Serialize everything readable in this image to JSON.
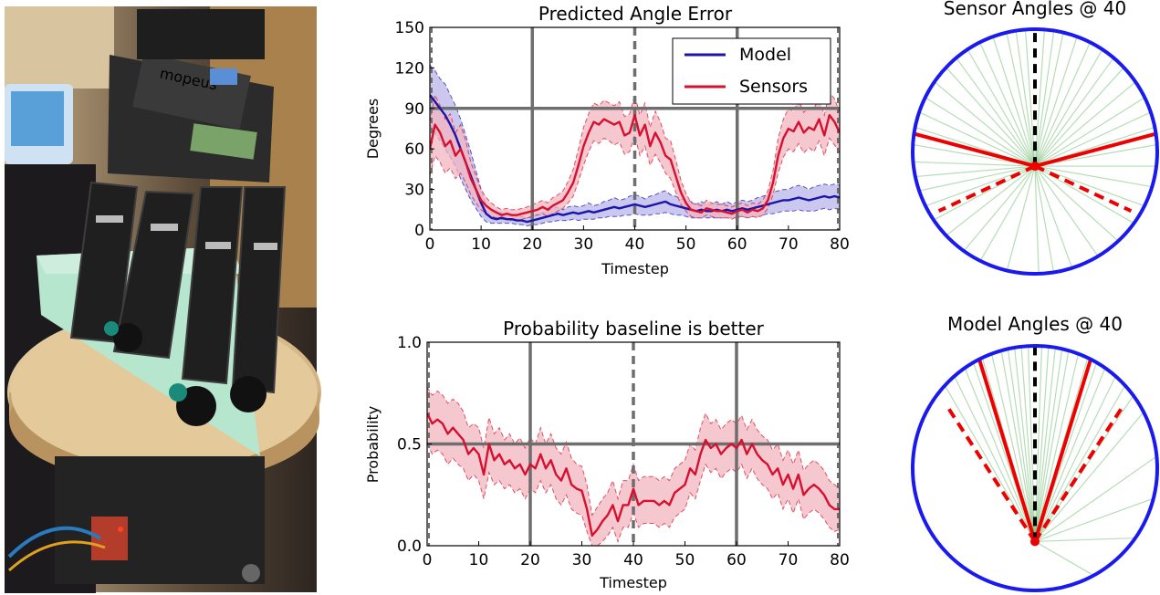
{
  "colors": {
    "model": "#1a14a8",
    "sensors": "#d6102e",
    "sensors_band": "#f2b5bf",
    "model_band": "#b9b6ea",
    "ref_line": "#6e6e6e",
    "polar_ring": "#1a1aef",
    "polar_rays": "#5db25d",
    "polar_red": "#ee0000"
  },
  "photo": {
    "description_icon": "robot-hand-photo",
    "label_text": "mopeus"
  },
  "chart_data": [
    {
      "type": "line",
      "id": "angle-error",
      "title": "Predicted Angle Error",
      "xlabel": "Timestep",
      "ylabel": "Degrees",
      "xlim": [
        0,
        80
      ],
      "ylim": [
        0,
        150
      ],
      "xticks": [
        0,
        10,
        20,
        30,
        40,
        50,
        60,
        70,
        80
      ],
      "yticks": [
        0,
        30,
        60,
        90,
        120,
        150
      ],
      "ref_hline": 90,
      "ref_vlines_solid": [
        20,
        60
      ],
      "ref_vline_dashed": 40,
      "legend": {
        "position": "top-right",
        "entries": [
          "Model",
          "Sensors"
        ]
      },
      "x": [
        0,
        1,
        2,
        3,
        4,
        5,
        6,
        7,
        8,
        9,
        10,
        11,
        12,
        13,
        14,
        15,
        16,
        17,
        18,
        19,
        20,
        21,
        22,
        23,
        24,
        25,
        26,
        27,
        28,
        29,
        30,
        31,
        32,
        33,
        34,
        35,
        36,
        37,
        38,
        39,
        40,
        41,
        42,
        43,
        44,
        45,
        46,
        47,
        48,
        49,
        50,
        51,
        52,
        53,
        54,
        55,
        56,
        57,
        58,
        59,
        60,
        61,
        62,
        63,
        64,
        65,
        66,
        67,
        68,
        69,
        70,
        71,
        72,
        73,
        74,
        75,
        76,
        77,
        78,
        79,
        80
      ],
      "series": [
        {
          "name": "Model",
          "values": [
            100,
            95,
            90,
            85,
            78,
            70,
            60,
            50,
            40,
            30,
            20,
            12,
            9,
            8,
            9,
            8,
            8,
            7,
            7,
            6,
            7,
            8,
            9,
            10,
            11,
            12,
            11,
            12,
            13,
            12,
            13,
            14,
            13,
            14,
            15,
            16,
            17,
            16,
            17,
            18,
            19,
            18,
            17,
            18,
            19,
            20,
            21,
            19,
            18,
            17,
            16,
            15,
            14,
            15,
            14,
            14,
            15,
            14,
            15,
            14,
            15,
            16,
            15,
            16,
            17,
            18,
            19,
            20,
            21,
            22,
            22,
            23,
            24,
            23,
            22,
            23,
            24,
            25,
            24,
            25,
            24
          ],
          "lower": [
            78,
            72,
            66,
            60,
            54,
            47,
            38,
            30,
            22,
            16,
            10,
            6,
            5,
            5,
            5,
            5,
            5,
            4,
            4,
            3,
            4,
            4,
            5,
            6,
            6,
            7,
            7,
            7,
            8,
            7,
            8,
            8,
            8,
            9,
            9,
            10,
            10,
            10,
            11,
            11,
            12,
            11,
            11,
            11,
            12,
            12,
            13,
            12,
            11,
            11,
            10,
            9,
            9,
            9,
            9,
            9,
            9,
            9,
            9,
            9,
            9,
            10,
            9,
            10,
            10,
            11,
            12,
            12,
            13,
            14,
            14,
            14,
            15,
            14,
            14,
            14,
            15,
            16,
            15,
            16,
            15
          ],
          "upper": [
            122,
            118,
            112,
            108,
            100,
            92,
            82,
            70,
            58,
            44,
            30,
            18,
            14,
            12,
            13,
            12,
            11,
            10,
            10,
            9,
            10,
            12,
            13,
            14,
            16,
            17,
            15,
            17,
            18,
            17,
            18,
            20,
            18,
            19,
            21,
            22,
            24,
            22,
            23,
            25,
            26,
            25,
            23,
            25,
            26,
            28,
            29,
            26,
            25,
            23,
            22,
            21,
            19,
            21,
            19,
            19,
            21,
            19,
            21,
            19,
            21,
            22,
            21,
            22,
            24,
            25,
            26,
            28,
            29,
            30,
            30,
            32,
            33,
            32,
            30,
            32,
            33,
            34,
            33,
            34,
            33
          ]
        },
        {
          "name": "Sensors",
          "values": [
            60,
            78,
            72,
            62,
            66,
            55,
            60,
            50,
            38,
            30,
            22,
            18,
            15,
            13,
            11,
            12,
            11,
            11,
            12,
            13,
            14,
            15,
            17,
            15,
            18,
            20,
            22,
            28,
            35,
            48,
            62,
            72,
            80,
            78,
            82,
            80,
            78,
            80,
            70,
            72,
            85,
            70,
            78,
            62,
            72,
            65,
            55,
            52,
            40,
            28,
            20,
            15,
            14,
            13,
            16,
            15,
            14,
            14,
            13,
            12,
            14,
            15,
            13,
            15,
            14,
            16,
            22,
            35,
            55,
            68,
            75,
            73,
            80,
            72,
            76,
            74,
            82,
            70,
            85,
            80,
            72
          ],
          "lower": [
            40,
            55,
            50,
            42,
            46,
            38,
            42,
            35,
            26,
            20,
            15,
            12,
            10,
            9,
            8,
            8,
            7,
            7,
            8,
            9,
            10,
            11,
            12,
            10,
            12,
            14,
            16,
            20,
            25,
            36,
            48,
            58,
            66,
            64,
            68,
            66,
            63,
            65,
            56,
            58,
            70,
            55,
            62,
            48,
            56,
            50,
            42,
            38,
            28,
            19,
            14,
            10,
            9,
            9,
            11,
            10,
            9,
            9,
            9,
            8,
            10,
            10,
            9,
            10,
            9,
            11,
            16,
            26,
            42,
            54,
            60,
            58,
            64,
            57,
            61,
            58,
            66,
            55,
            68,
            63,
            57
          ],
          "upper": [
            80,
            100,
            92,
            82,
            86,
            72,
            78,
            66,
            50,
            40,
            30,
            24,
            20,
            17,
            15,
            16,
            15,
            15,
            16,
            17,
            19,
            20,
            22,
            20,
            24,
            26,
            29,
            36,
            45,
            60,
            76,
            86,
            94,
            92,
            96,
            94,
            92,
            95,
            84,
            86,
            100,
            85,
            94,
            76,
            88,
            80,
            68,
            66,
            52,
            37,
            27,
            20,
            19,
            18,
            22,
            20,
            19,
            19,
            18,
            17,
            19,
            20,
            18,
            20,
            19,
            22,
            29,
            44,
            68,
            82,
            90,
            88,
            96,
            87,
            91,
            90,
            98,
            85,
            102,
            97,
            87
          ]
        }
      ]
    },
    {
      "type": "line",
      "id": "probability",
      "title": "Probability baseline is better",
      "xlabel": "Timestep",
      "ylabel": "Probability",
      "xlim": [
        0,
        80
      ],
      "ylim": [
        0.0,
        1.0
      ],
      "xticks": [
        0,
        10,
        20,
        30,
        40,
        50,
        60,
        70,
        80
      ],
      "yticks": [
        "0.0",
        "0.5",
        "1.0"
      ],
      "ref_hline": 0.5,
      "ref_vlines_solid": [
        20,
        60
      ],
      "ref_vline_dashed": 40,
      "x": [
        0,
        1,
        2,
        3,
        4,
        5,
        6,
        7,
        8,
        9,
        10,
        11,
        12,
        13,
        14,
        15,
        16,
        17,
        18,
        19,
        20,
        21,
        22,
        23,
        24,
        25,
        26,
        27,
        28,
        29,
        30,
        31,
        32,
        33,
        34,
        35,
        36,
        37,
        38,
        39,
        40,
        41,
        42,
        43,
        44,
        45,
        46,
        47,
        48,
        49,
        50,
        51,
        52,
        53,
        54,
        55,
        56,
        57,
        58,
        59,
        60,
        61,
        62,
        63,
        64,
        65,
        66,
        67,
        68,
        69,
        70,
        71,
        72,
        73,
        74,
        75,
        76,
        77,
        78,
        79,
        80
      ],
      "series": [
        {
          "name": "Probability",
          "values": [
            0.65,
            0.6,
            0.62,
            0.6,
            0.55,
            0.58,
            0.55,
            0.52,
            0.45,
            0.48,
            0.45,
            0.35,
            0.5,
            0.42,
            0.45,
            0.4,
            0.42,
            0.38,
            0.4,
            0.35,
            0.4,
            0.38,
            0.45,
            0.38,
            0.42,
            0.35,
            0.32,
            0.38,
            0.3,
            0.28,
            0.27,
            0.18,
            0.05,
            0.08,
            0.12,
            0.15,
            0.2,
            0.12,
            0.2,
            0.2,
            0.28,
            0.2,
            0.22,
            0.22,
            0.22,
            0.2,
            0.22,
            0.2,
            0.26,
            0.28,
            0.3,
            0.38,
            0.35,
            0.45,
            0.52,
            0.48,
            0.5,
            0.45,
            0.48,
            0.5,
            0.48,
            0.52,
            0.45,
            0.5,
            0.45,
            0.42,
            0.4,
            0.35,
            0.38,
            0.3,
            0.35,
            0.28,
            0.35,
            0.25,
            0.28,
            0.3,
            0.28,
            0.25,
            0.2,
            0.18,
            0.18
          ],
          "lower": [
            0.5,
            0.45,
            0.47,
            0.45,
            0.4,
            0.43,
            0.4,
            0.38,
            0.32,
            0.35,
            0.32,
            0.23,
            0.36,
            0.3,
            0.32,
            0.28,
            0.3,
            0.26,
            0.28,
            0.23,
            0.28,
            0.26,
            0.32,
            0.26,
            0.3,
            0.23,
            0.2,
            0.25,
            0.18,
            0.16,
            0.15,
            0.07,
            0.0,
            0.0,
            0.02,
            0.05,
            0.09,
            0.02,
            0.09,
            0.09,
            0.16,
            0.09,
            0.11,
            0.11,
            0.11,
            0.09,
            0.11,
            0.09,
            0.14,
            0.16,
            0.18,
            0.26,
            0.23,
            0.32,
            0.4,
            0.36,
            0.38,
            0.33,
            0.36,
            0.38,
            0.36,
            0.4,
            0.33,
            0.38,
            0.33,
            0.3,
            0.28,
            0.23,
            0.26,
            0.18,
            0.23,
            0.16,
            0.23,
            0.13,
            0.16,
            0.18,
            0.16,
            0.13,
            0.09,
            0.07,
            0.08
          ],
          "upper": [
            0.78,
            0.74,
            0.76,
            0.74,
            0.7,
            0.72,
            0.7,
            0.66,
            0.58,
            0.6,
            0.58,
            0.48,
            0.63,
            0.55,
            0.58,
            0.52,
            0.55,
            0.5,
            0.53,
            0.48,
            0.53,
            0.5,
            0.58,
            0.5,
            0.55,
            0.48,
            0.45,
            0.51,
            0.43,
            0.4,
            0.39,
            0.3,
            0.15,
            0.19,
            0.23,
            0.26,
            0.32,
            0.23,
            0.32,
            0.32,
            0.4,
            0.32,
            0.34,
            0.34,
            0.34,
            0.32,
            0.34,
            0.32,
            0.38,
            0.4,
            0.42,
            0.5,
            0.47,
            0.58,
            0.65,
            0.6,
            0.62,
            0.57,
            0.6,
            0.62,
            0.6,
            0.64,
            0.57,
            0.62,
            0.57,
            0.54,
            0.52,
            0.47,
            0.5,
            0.42,
            0.47,
            0.4,
            0.47,
            0.37,
            0.4,
            0.42,
            0.4,
            0.37,
            0.32,
            0.3,
            0.28
          ]
        }
      ]
    },
    {
      "type": "polar",
      "id": "sensor-angles",
      "title": "Sensor Angles @ 40",
      "hub": [
        0.0,
        -0.12
      ],
      "true_angle_deg": 0,
      "predicted_solid_deg": [
        -75,
        75
      ],
      "predicted_dashed_deg": [
        -115,
        115
      ],
      "ray_angles_deg": [
        -165,
        -150,
        -140,
        -128,
        -118,
        -110,
        -102,
        -95,
        -88,
        -80,
        -72,
        -65,
        -58,
        -50,
        -42,
        -36,
        -30,
        -24,
        -18,
        -12,
        -8,
        -4,
        4,
        8,
        12,
        18,
        24,
        30,
        36,
        42,
        50,
        58,
        65,
        72,
        80,
        90,
        100,
        110,
        120,
        132,
        145,
        160,
        170,
        178
      ]
    },
    {
      "type": "polar",
      "id": "model-angles",
      "title": "Model Angles @ 40",
      "hub": [
        0.0,
        -0.6
      ],
      "true_angle_deg": 0,
      "predicted_solid_deg": [
        -17,
        17
      ],
      "predicted_dashed_deg": [
        -33,
        33
      ],
      "ray_angles_deg": [
        -30,
        -26,
        -22,
        -19,
        -16,
        -13,
        -10,
        -8,
        -6,
        -4,
        -2,
        2,
        4,
        6,
        8,
        10,
        13,
        16,
        19,
        22,
        26,
        30,
        34,
        40,
        55,
        70,
        88,
        120
      ]
    }
  ]
}
